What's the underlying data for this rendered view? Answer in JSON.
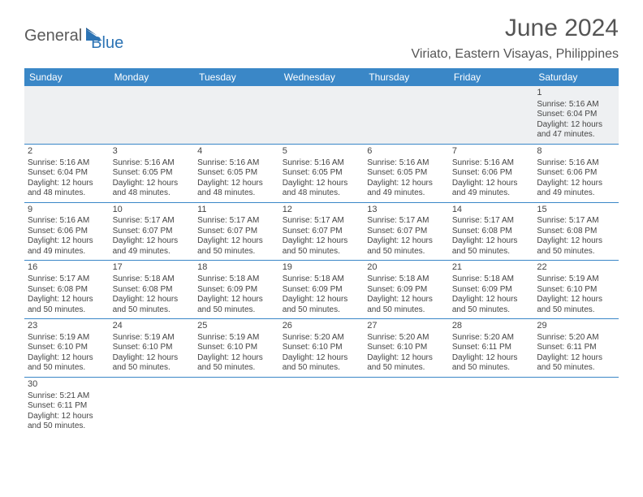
{
  "logo": {
    "part1": "General",
    "part2": "Blue"
  },
  "title": "June 2024",
  "location": "Viriato, Eastern Visayas, Philippines",
  "colors": {
    "header_bg": "#3a87c7",
    "header_fg": "#ffffff",
    "row_divider": "#3a87c7",
    "first_row_bg": "#eef0f2",
    "text": "#444444",
    "logo_gray": "#5a5a5a",
    "logo_blue": "#2d74b5"
  },
  "weekdays": [
    "Sunday",
    "Monday",
    "Tuesday",
    "Wednesday",
    "Thursday",
    "Friday",
    "Saturday"
  ],
  "weeks": [
    [
      null,
      null,
      null,
      null,
      null,
      null,
      {
        "n": "1",
        "sr": "Sunrise: 5:16 AM",
        "ss": "Sunset: 6:04 PM",
        "dl1": "Daylight: 12 hours",
        "dl2": "and 47 minutes."
      }
    ],
    [
      {
        "n": "2",
        "sr": "Sunrise: 5:16 AM",
        "ss": "Sunset: 6:04 PM",
        "dl1": "Daylight: 12 hours",
        "dl2": "and 48 minutes."
      },
      {
        "n": "3",
        "sr": "Sunrise: 5:16 AM",
        "ss": "Sunset: 6:05 PM",
        "dl1": "Daylight: 12 hours",
        "dl2": "and 48 minutes."
      },
      {
        "n": "4",
        "sr": "Sunrise: 5:16 AM",
        "ss": "Sunset: 6:05 PM",
        "dl1": "Daylight: 12 hours",
        "dl2": "and 48 minutes."
      },
      {
        "n": "5",
        "sr": "Sunrise: 5:16 AM",
        "ss": "Sunset: 6:05 PM",
        "dl1": "Daylight: 12 hours",
        "dl2": "and 48 minutes."
      },
      {
        "n": "6",
        "sr": "Sunrise: 5:16 AM",
        "ss": "Sunset: 6:05 PM",
        "dl1": "Daylight: 12 hours",
        "dl2": "and 49 minutes."
      },
      {
        "n": "7",
        "sr": "Sunrise: 5:16 AM",
        "ss": "Sunset: 6:06 PM",
        "dl1": "Daylight: 12 hours",
        "dl2": "and 49 minutes."
      },
      {
        "n": "8",
        "sr": "Sunrise: 5:16 AM",
        "ss": "Sunset: 6:06 PM",
        "dl1": "Daylight: 12 hours",
        "dl2": "and 49 minutes."
      }
    ],
    [
      {
        "n": "9",
        "sr": "Sunrise: 5:16 AM",
        "ss": "Sunset: 6:06 PM",
        "dl1": "Daylight: 12 hours",
        "dl2": "and 49 minutes."
      },
      {
        "n": "10",
        "sr": "Sunrise: 5:17 AM",
        "ss": "Sunset: 6:07 PM",
        "dl1": "Daylight: 12 hours",
        "dl2": "and 49 minutes."
      },
      {
        "n": "11",
        "sr": "Sunrise: 5:17 AM",
        "ss": "Sunset: 6:07 PM",
        "dl1": "Daylight: 12 hours",
        "dl2": "and 50 minutes."
      },
      {
        "n": "12",
        "sr": "Sunrise: 5:17 AM",
        "ss": "Sunset: 6:07 PM",
        "dl1": "Daylight: 12 hours",
        "dl2": "and 50 minutes."
      },
      {
        "n": "13",
        "sr": "Sunrise: 5:17 AM",
        "ss": "Sunset: 6:07 PM",
        "dl1": "Daylight: 12 hours",
        "dl2": "and 50 minutes."
      },
      {
        "n": "14",
        "sr": "Sunrise: 5:17 AM",
        "ss": "Sunset: 6:08 PM",
        "dl1": "Daylight: 12 hours",
        "dl2": "and 50 minutes."
      },
      {
        "n": "15",
        "sr": "Sunrise: 5:17 AM",
        "ss": "Sunset: 6:08 PM",
        "dl1": "Daylight: 12 hours",
        "dl2": "and 50 minutes."
      }
    ],
    [
      {
        "n": "16",
        "sr": "Sunrise: 5:17 AM",
        "ss": "Sunset: 6:08 PM",
        "dl1": "Daylight: 12 hours",
        "dl2": "and 50 minutes."
      },
      {
        "n": "17",
        "sr": "Sunrise: 5:18 AM",
        "ss": "Sunset: 6:08 PM",
        "dl1": "Daylight: 12 hours",
        "dl2": "and 50 minutes."
      },
      {
        "n": "18",
        "sr": "Sunrise: 5:18 AM",
        "ss": "Sunset: 6:09 PM",
        "dl1": "Daylight: 12 hours",
        "dl2": "and 50 minutes."
      },
      {
        "n": "19",
        "sr": "Sunrise: 5:18 AM",
        "ss": "Sunset: 6:09 PM",
        "dl1": "Daylight: 12 hours",
        "dl2": "and 50 minutes."
      },
      {
        "n": "20",
        "sr": "Sunrise: 5:18 AM",
        "ss": "Sunset: 6:09 PM",
        "dl1": "Daylight: 12 hours",
        "dl2": "and 50 minutes."
      },
      {
        "n": "21",
        "sr": "Sunrise: 5:18 AM",
        "ss": "Sunset: 6:09 PM",
        "dl1": "Daylight: 12 hours",
        "dl2": "and 50 minutes."
      },
      {
        "n": "22",
        "sr": "Sunrise: 5:19 AM",
        "ss": "Sunset: 6:10 PM",
        "dl1": "Daylight: 12 hours",
        "dl2": "and 50 minutes."
      }
    ],
    [
      {
        "n": "23",
        "sr": "Sunrise: 5:19 AM",
        "ss": "Sunset: 6:10 PM",
        "dl1": "Daylight: 12 hours",
        "dl2": "and 50 minutes."
      },
      {
        "n": "24",
        "sr": "Sunrise: 5:19 AM",
        "ss": "Sunset: 6:10 PM",
        "dl1": "Daylight: 12 hours",
        "dl2": "and 50 minutes."
      },
      {
        "n": "25",
        "sr": "Sunrise: 5:19 AM",
        "ss": "Sunset: 6:10 PM",
        "dl1": "Daylight: 12 hours",
        "dl2": "and 50 minutes."
      },
      {
        "n": "26",
        "sr": "Sunrise: 5:20 AM",
        "ss": "Sunset: 6:10 PM",
        "dl1": "Daylight: 12 hours",
        "dl2": "and 50 minutes."
      },
      {
        "n": "27",
        "sr": "Sunrise: 5:20 AM",
        "ss": "Sunset: 6:10 PM",
        "dl1": "Daylight: 12 hours",
        "dl2": "and 50 minutes."
      },
      {
        "n": "28",
        "sr": "Sunrise: 5:20 AM",
        "ss": "Sunset: 6:11 PM",
        "dl1": "Daylight: 12 hours",
        "dl2": "and 50 minutes."
      },
      {
        "n": "29",
        "sr": "Sunrise: 5:20 AM",
        "ss": "Sunset: 6:11 PM",
        "dl1": "Daylight: 12 hours",
        "dl2": "and 50 minutes."
      }
    ],
    [
      {
        "n": "30",
        "sr": "Sunrise: 5:21 AM",
        "ss": "Sunset: 6:11 PM",
        "dl1": "Daylight: 12 hours",
        "dl2": "and 50 minutes."
      },
      null,
      null,
      null,
      null,
      null,
      null
    ]
  ]
}
